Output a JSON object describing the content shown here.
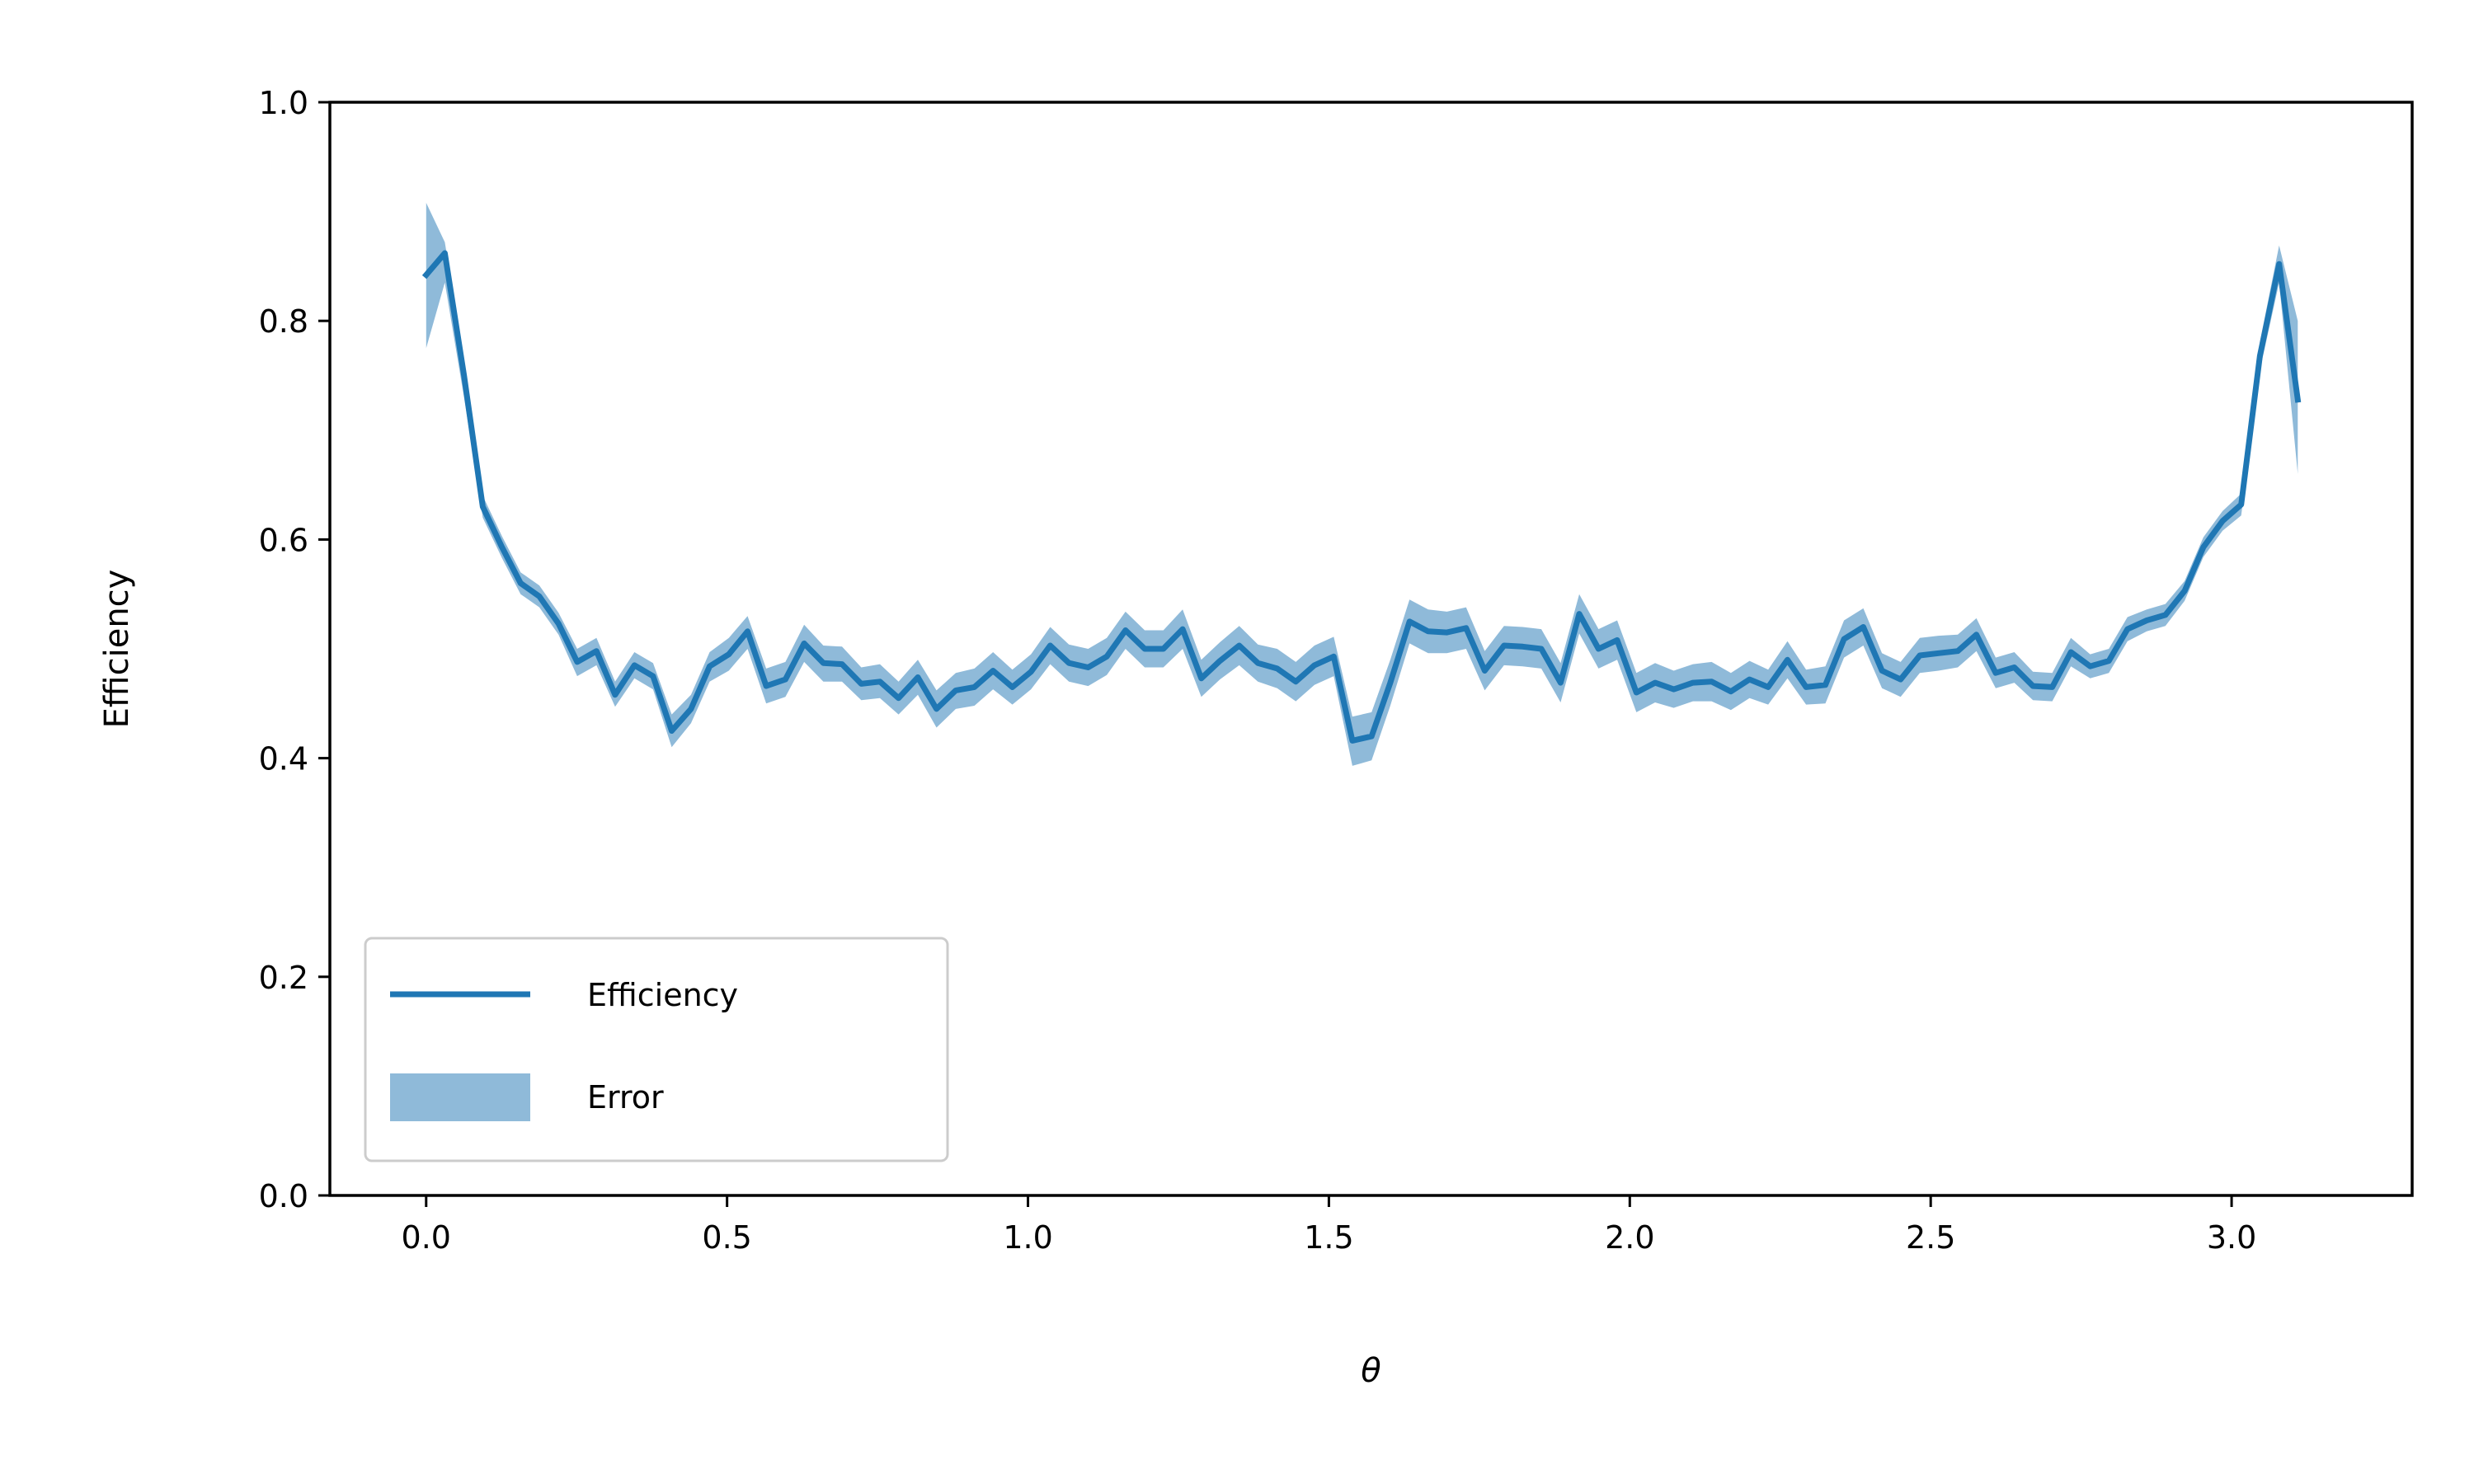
{
  "chart_data": {
    "type": "line",
    "title": "",
    "xlabel": "θ",
    "ylabel": "Efficiency",
    "xlim": [
      -0.16,
      3.3
    ],
    "ylim": [
      0.0,
      1.0
    ],
    "xticks": [
      "0.0",
      "0.5",
      "1.0",
      "1.5",
      "2.0",
      "2.5",
      "3.0"
    ],
    "yticks": [
      "0.0",
      "0.2",
      "0.4",
      "0.6",
      "0.8",
      "1.0"
    ],
    "grid": false,
    "legend_position": "bottom-left",
    "line_color": "#1f77b4",
    "band_color": "#8fbad9",
    "series": [
      {
        "name": "Efficiency",
        "x": [
          0.0,
          0.031,
          0.063,
          0.094,
          0.126,
          0.157,
          0.188,
          0.22,
          0.251,
          0.283,
          0.314,
          0.346,
          0.377,
          0.408,
          0.44,
          0.471,
          0.503,
          0.534,
          0.565,
          0.597,
          0.628,
          0.66,
          0.691,
          0.723,
          0.754,
          0.785,
          0.817,
          0.848,
          0.88,
          0.911,
          0.942,
          0.974,
          1.005,
          1.037,
          1.068,
          1.1,
          1.131,
          1.162,
          1.194,
          1.225,
          1.257,
          1.288,
          1.319,
          1.351,
          1.382,
          1.414,
          1.445,
          1.476,
          1.508,
          1.539,
          1.571,
          1.602,
          1.634,
          1.665,
          1.696,
          1.728,
          1.759,
          1.791,
          1.822,
          1.853,
          1.885,
          1.916,
          1.948,
          1.979,
          2.011,
          2.042,
          2.073,
          2.105,
          2.136,
          2.168,
          2.199,
          2.23,
          2.262,
          2.293,
          2.325,
          2.356,
          2.388,
          2.419,
          2.45,
          2.482,
          2.513,
          2.545,
          2.576,
          2.608,
          2.639,
          2.67,
          2.702,
          2.733,
          2.765,
          2.796,
          2.827,
          2.859,
          2.89,
          2.922,
          2.953,
          2.985,
          3.016,
          3.047,
          3.079,
          3.11
        ],
        "values": [
          0.842,
          0.862,
          0.75,
          0.63,
          0.593,
          0.56,
          0.548,
          0.523,
          0.488,
          0.498,
          0.458,
          0.485,
          0.475,
          0.425,
          0.445,
          0.484,
          0.495,
          0.516,
          0.466,
          0.472,
          0.505,
          0.487,
          0.486,
          0.468,
          0.47,
          0.455,
          0.474,
          0.445,
          0.462,
          0.465,
          0.48,
          0.465,
          0.479,
          0.503,
          0.487,
          0.483,
          0.493,
          0.517,
          0.5,
          0.5,
          0.518,
          0.473,
          0.489,
          0.503,
          0.487,
          0.482,
          0.47,
          0.485,
          0.493,
          0.416,
          0.42,
          0.469,
          0.525,
          0.516,
          0.515,
          0.519,
          0.48,
          0.503,
          0.502,
          0.5,
          0.469,
          0.532,
          0.5,
          0.508,
          0.46,
          0.469,
          0.463,
          0.469,
          0.47,
          0.461,
          0.472,
          0.465,
          0.49,
          0.465,
          0.467,
          0.509,
          0.52,
          0.48,
          0.472,
          0.494,
          0.496,
          0.498,
          0.513,
          0.478,
          0.483,
          0.466,
          0.465,
          0.497,
          0.484,
          0.489,
          0.518,
          0.526,
          0.531,
          0.553,
          0.593,
          0.617,
          0.632,
          0.768,
          0.852,
          0.728
        ]
      },
      {
        "name": "Error",
        "lower": [
          0.775,
          0.835,
          0.73,
          0.62,
          0.583,
          0.55,
          0.538,
          0.513,
          0.475,
          0.485,
          0.447,
          0.473,
          0.463,
          0.41,
          0.432,
          0.47,
          0.48,
          0.5,
          0.45,
          0.456,
          0.488,
          0.47,
          0.47,
          0.453,
          0.455,
          0.44,
          0.458,
          0.428,
          0.445,
          0.448,
          0.463,
          0.449,
          0.463,
          0.486,
          0.47,
          0.466,
          0.476,
          0.5,
          0.483,
          0.483,
          0.5,
          0.456,
          0.472,
          0.485,
          0.47,
          0.464,
          0.452,
          0.467,
          0.475,
          0.393,
          0.398,
          0.448,
          0.505,
          0.496,
          0.496,
          0.5,
          0.462,
          0.485,
          0.484,
          0.482,
          0.451,
          0.514,
          0.482,
          0.49,
          0.442,
          0.451,
          0.446,
          0.452,
          0.452,
          0.444,
          0.455,
          0.449,
          0.473,
          0.449,
          0.45,
          0.492,
          0.503,
          0.464,
          0.456,
          0.478,
          0.48,
          0.483,
          0.498,
          0.464,
          0.469,
          0.453,
          0.452,
          0.484,
          0.473,
          0.478,
          0.507,
          0.516,
          0.521,
          0.544,
          0.584,
          0.608,
          0.622,
          0.755,
          0.835,
          0.66
        ],
        "upper": [
          0.908,
          0.872,
          0.765,
          0.64,
          0.603,
          0.57,
          0.558,
          0.533,
          0.5,
          0.51,
          0.47,
          0.497,
          0.487,
          0.44,
          0.458,
          0.497,
          0.51,
          0.53,
          0.482,
          0.488,
          0.522,
          0.503,
          0.502,
          0.483,
          0.486,
          0.47,
          0.49,
          0.462,
          0.478,
          0.482,
          0.497,
          0.481,
          0.495,
          0.52,
          0.504,
          0.5,
          0.51,
          0.534,
          0.517,
          0.517,
          0.536,
          0.49,
          0.506,
          0.521,
          0.504,
          0.5,
          0.488,
          0.503,
          0.511,
          0.438,
          0.442,
          0.49,
          0.545,
          0.536,
          0.534,
          0.538,
          0.498,
          0.521,
          0.52,
          0.518,
          0.487,
          0.55,
          0.518,
          0.526,
          0.478,
          0.487,
          0.48,
          0.486,
          0.488,
          0.478,
          0.489,
          0.481,
          0.507,
          0.481,
          0.484,
          0.526,
          0.537,
          0.496,
          0.488,
          0.51,
          0.512,
          0.513,
          0.528,
          0.492,
          0.497,
          0.479,
          0.478,
          0.51,
          0.495,
          0.5,
          0.529,
          0.536,
          0.541,
          0.562,
          0.602,
          0.626,
          0.642,
          0.781,
          0.869,
          0.8
        ]
      }
    ]
  }
}
